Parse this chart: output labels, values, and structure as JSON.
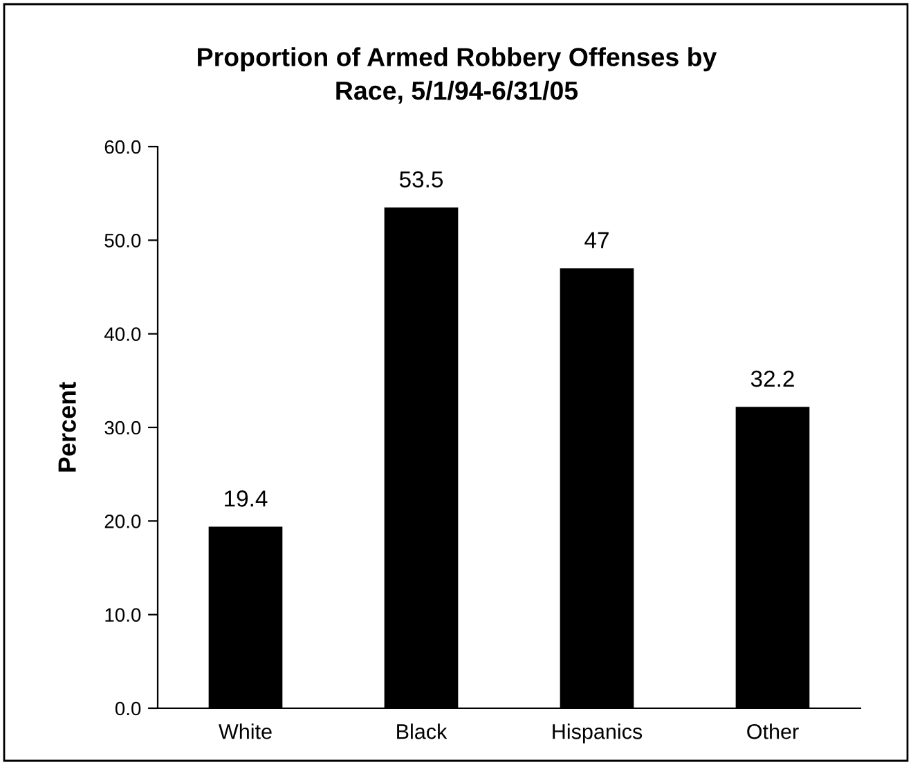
{
  "chart_data": {
    "type": "bar",
    "title": "Proportion of Armed Robbery Offenses by\nRace, 5/1/94-6/31/05",
    "ylabel": "Percent",
    "categories": [
      "White",
      "Black",
      "Hispanics",
      "Other"
    ],
    "values": [
      19.4,
      53.5,
      47,
      32.2
    ],
    "color": "#000000",
    "ylim": [
      0,
      60
    ],
    "yticks": [
      {
        "value": 0,
        "label": "0.0"
      },
      {
        "value": 10,
        "label": "10.0"
      },
      {
        "value": 20,
        "label": "20.0"
      },
      {
        "value": 30,
        "label": "30.0"
      },
      {
        "value": 40,
        "label": "40.0"
      },
      {
        "value": 50,
        "label": "50.0"
      },
      {
        "value": 60,
        "label": "60.0"
      }
    ],
    "data_labels": true,
    "grid": false,
    "legend": false
  }
}
